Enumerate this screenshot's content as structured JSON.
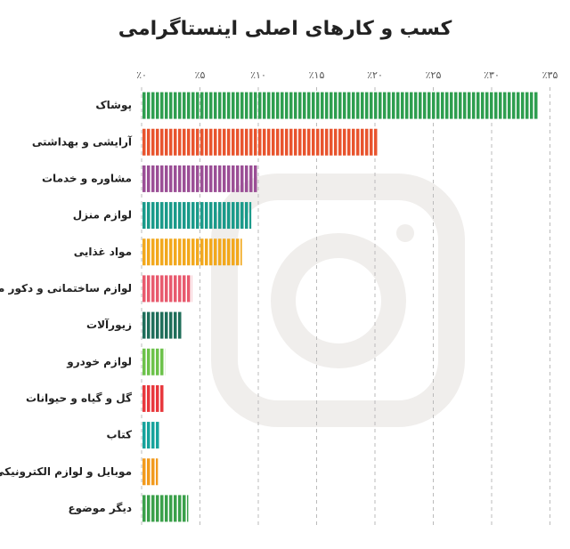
{
  "chart_data": {
    "type": "hbar",
    "title": "کسب و کارهای اصلی اینستاگرامی",
    "categories": [
      "پوشاک",
      "آرایشی و بهداشتی",
      "مشاوره و خدمات",
      "لوازم منزل",
      "مواد غذایی",
      "لوازم ساختمانی و دکور منزل",
      "زیورآلات",
      "لوازم خودرو",
      "گل و گیاه و حیوانات",
      "کتاب",
      "موبایل و لوازم الکترونیکی",
      "دیگر موضوع"
    ],
    "values": [
      34,
      20.2,
      10,
      9.4,
      8.6,
      4.3,
      3.5,
      2,
      1.9,
      1.5,
      1.4,
      4
    ],
    "colors": [
      "#2e9e4f",
      "#e8542e",
      "#9b4f96",
      "#1a9a8a",
      "#f2a81d",
      "#e85a6e",
      "#1f6e5a",
      "#6cc24a",
      "#e8383d",
      "#17a39c",
      "#f29a1d",
      "#3aa04a"
    ],
    "xlim": [
      0,
      35
    ],
    "xticks": [
      {
        "value": 0,
        "label": "٪۰"
      },
      {
        "value": 5,
        "label": "٪۵"
      },
      {
        "value": 10,
        "label": "٪۱۰"
      },
      {
        "value": 15,
        "label": "٪۱۵"
      },
      {
        "value": 20,
        "label": "٪۲۰"
      },
      {
        "value": 25,
        "label": "٪۲۵"
      },
      {
        "value": 30,
        "label": "٪۳۰"
      },
      {
        "value": 35,
        "label": "٪۳۵"
      }
    ],
    "grid": true
  }
}
